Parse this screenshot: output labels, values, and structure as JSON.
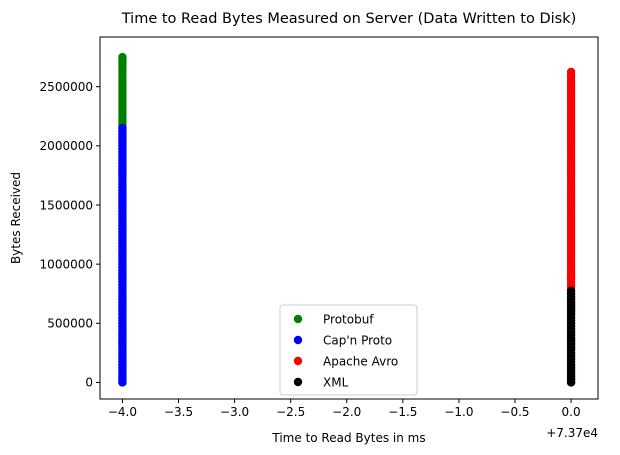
{
  "chart_data": {
    "type": "scatter",
    "title": "Time to Read Bytes Measured on Server (Data Written to Disk)",
    "xlabel": "Time to Read Bytes in ms",
    "ylabel": "Bytes Received",
    "x_offset_label": "+7.37e4",
    "x_tick_labels": [
      "−4.0",
      "−3.5",
      "−3.0",
      "−2.5",
      "−2.0",
      "−1.5",
      "−1.0",
      "−0.5",
      "0.0"
    ],
    "x_ticks": [
      -4.0,
      -3.5,
      -3.0,
      -2.5,
      -2.0,
      -1.5,
      -1.0,
      -0.5,
      0.0
    ],
    "y_tick_labels": [
      "0",
      "500000",
      "1000000",
      "1500000",
      "2000000",
      "2500000"
    ],
    "y_ticks": [
      0,
      500000,
      1000000,
      1500000,
      2000000,
      2500000
    ],
    "xlim": [
      -4.2,
      0.24
    ],
    "ylim": [
      -140000,
      2920000
    ],
    "grid": false,
    "legend_position": "lower center",
    "series": [
      {
        "name": "Protobuf",
        "color": "#008000",
        "x": -4.0,
        "y_min": 0,
        "y_max": 2770000,
        "step": 25000
      },
      {
        "name": "Cap'n Proto",
        "color": "#0000ff",
        "x": -4.0,
        "y_min": 0,
        "y_max": 2150000,
        "step": 25000
      },
      {
        "name": "Apache Avro",
        "color": "#ff0000",
        "x": 0.0,
        "y_min": 0,
        "y_max": 2630000,
        "step": 25000
      },
      {
        "name": "XML",
        "color": "#000000",
        "x": 0.0,
        "y_min": 0,
        "y_max": 790000,
        "step": 25000
      }
    ]
  }
}
